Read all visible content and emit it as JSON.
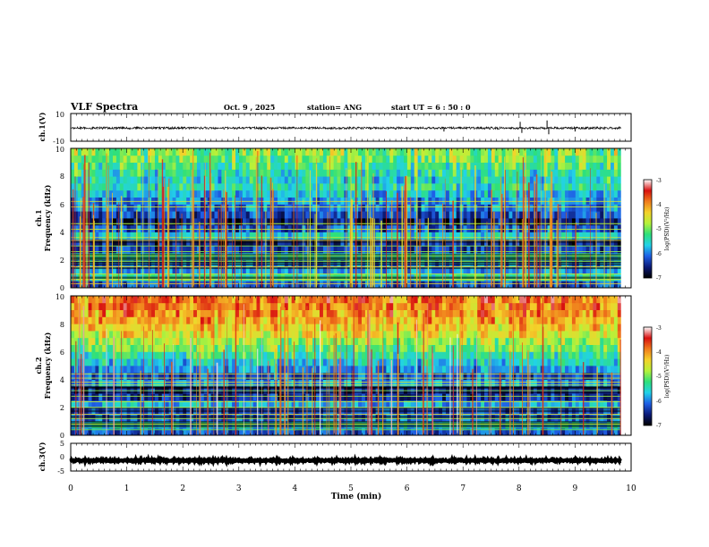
{
  "header": {
    "title": "VLF Spectra",
    "date": "Oct. 9 , 2025",
    "station": "station= ANG",
    "start": "start UT = 6 : 50 : 0"
  },
  "colors": {
    "stops": [
      "#000000",
      "#0c1a78",
      "#1f5fe6",
      "#22d2e8",
      "#2ee07a",
      "#b6f23a",
      "#f4d22a",
      "#f07c1c",
      "#d81010",
      "#ffffff"
    ]
  },
  "chart_data": [
    {
      "type": "line",
      "name": "ch1-waveform",
      "ylabel": "ch.1(V)",
      "ylim": [
        -10,
        10
      ],
      "yticks": [
        "10",
        "-10"
      ],
      "baseline": -0.5,
      "noise_amp": 0.8,
      "spikes": [
        {
          "t": 6.66,
          "v": -3
        },
        {
          "t": 8.02,
          "v": 4
        },
        {
          "t": 8.05,
          "v": -4
        },
        {
          "t": 8.5,
          "v": 5
        },
        {
          "t": 8.53,
          "v": -5
        },
        {
          "t": 9.0,
          "v": -3
        }
      ],
      "xlim": [
        0,
        10
      ]
    },
    {
      "type": "heatmap",
      "name": "ch1-spectrogram",
      "ylabel": "ch.1",
      "ylabel2": "Frequency (kHz)",
      "ylim": [
        0,
        10
      ],
      "yticks": [
        "0",
        "2",
        "4",
        "6",
        "8",
        "10"
      ],
      "xlim": [
        0,
        10
      ],
      "data_end": 9.82,
      "colorbar": {
        "label": "log(PSD)(V²/Hz)",
        "range": [
          -7,
          -3
        ],
        "ticks": [
          "-3",
          "-4",
          "-5",
          "-6",
          "-7"
        ]
      },
      "seed": 17,
      "base": [
        -6.2,
        -5.4,
        -5.9,
        -6.0,
        -5.5,
        -6.3,
        -6.5,
        -5.6,
        -6.2,
        -6.6,
        -6.3,
        -6.0,
        -5.9,
        -5.7,
        -5.4,
        -5.5,
        -5.3,
        -5.2,
        -5.0,
        -4.9
      ],
      "lines_khz": [
        0.3,
        0.6,
        1.0,
        1.5,
        1.9,
        2.3,
        2.6,
        3.0,
        3.4,
        3.6,
        4.2,
        4.6,
        5.8,
        6.2
      ],
      "line_level": -4.7,
      "spike_count": 130,
      "spike_level": -4.0,
      "dark_band_khz": [
        0.6,
        3.8
      ]
    },
    {
      "type": "heatmap",
      "name": "ch2-spectrogram",
      "ylabel": "ch.2",
      "ylabel2": "Frequency (kHz)",
      "ylim": [
        0,
        10
      ],
      "yticks": [
        "0",
        "2",
        "4",
        "6",
        "8",
        "10"
      ],
      "xlim": [
        0,
        10
      ],
      "data_end": 9.82,
      "colorbar": {
        "label": "log(PSD)(V²/Hz)",
        "range": [
          -7,
          -3
        ],
        "ticks": [
          "-3",
          "-4",
          "-5",
          "-6",
          "-7"
        ]
      },
      "seed": 91,
      "base": [
        -6.2,
        -5.6,
        -6.1,
        -6.2,
        -5.8,
        -6.4,
        -6.5,
        -5.9,
        -6.2,
        -5.9,
        -5.6,
        -5.3,
        -5.0,
        -4.8,
        -4.5,
        -4.3,
        -4.1,
        -4.0,
        -3.9,
        -3.8
      ],
      "lines_khz": [
        0.4,
        0.8,
        1.2,
        1.5,
        2.0,
        2.4,
        2.8,
        3.2,
        3.6,
        3.8,
        4.1,
        4.4
      ],
      "line_level": -4.8,
      "spike_count": 90,
      "spike_level": -3.6,
      "dark_band_khz": [
        0.6,
        3.6
      ]
    },
    {
      "type": "line",
      "name": "ch3-waveform",
      "ylabel": "ch.3(V)",
      "ylim": [
        -5,
        5
      ],
      "yticks": [
        "5",
        "0",
        "-5"
      ],
      "baseline": -1.2,
      "noise_amp": 0.3,
      "spikes": [],
      "xlim": [
        0,
        10
      ]
    }
  ],
  "xaxis": {
    "xlabel": "Time (min)",
    "ticks": [
      "0",
      "1",
      "2",
      "3",
      "4",
      "5",
      "6",
      "7",
      "8",
      "9",
      "10"
    ]
  }
}
